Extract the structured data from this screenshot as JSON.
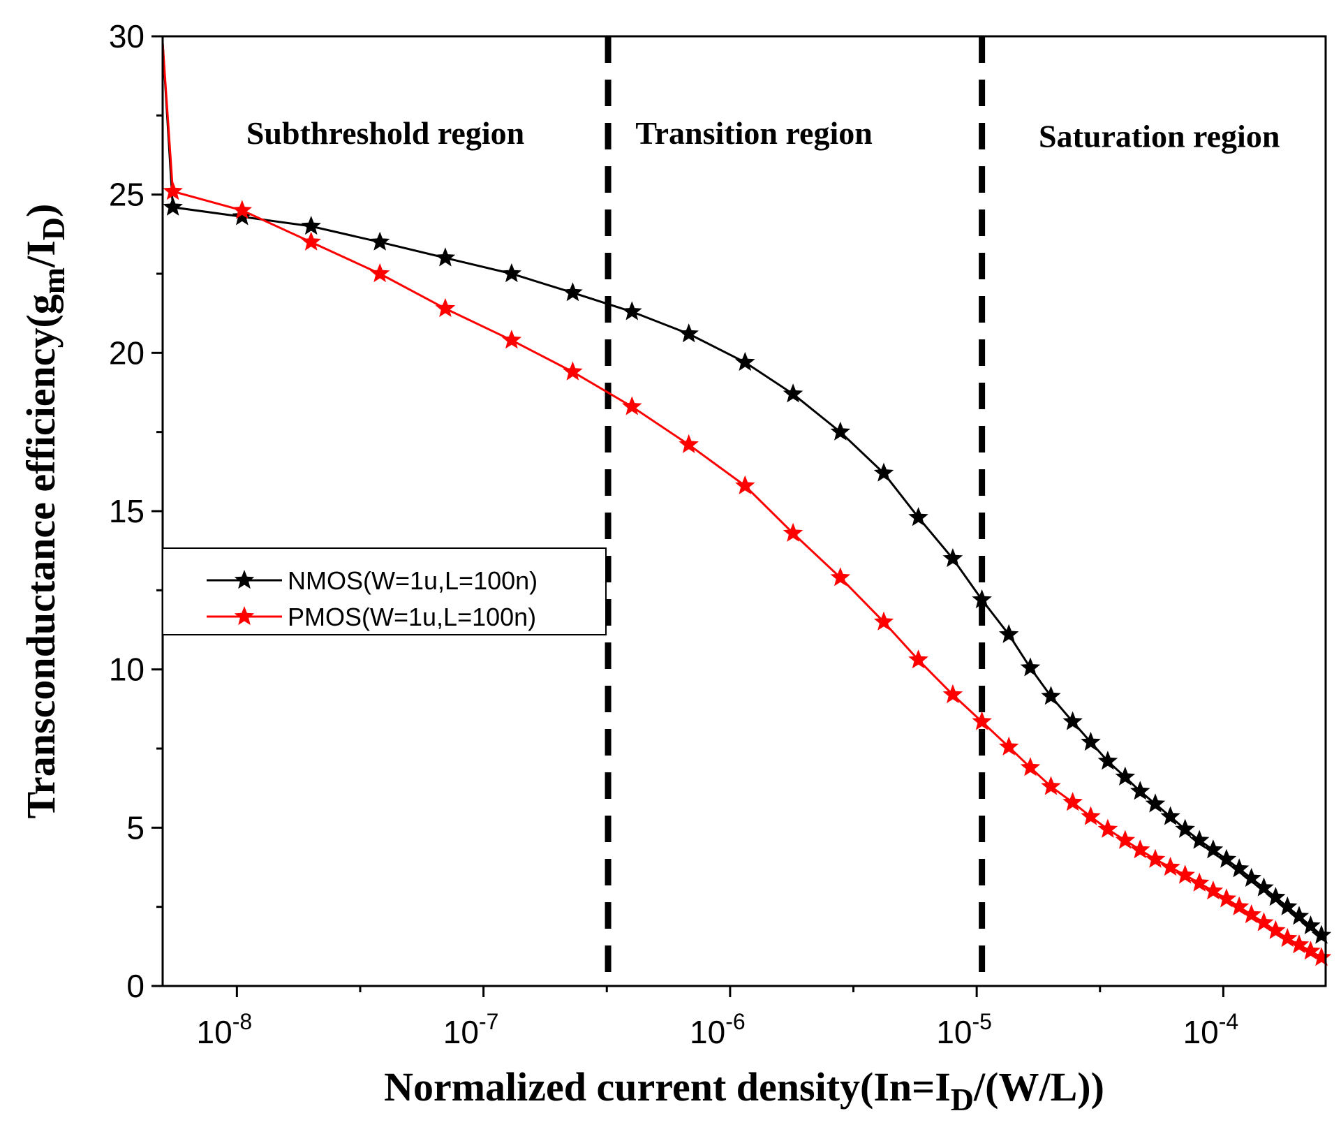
{
  "chart_data": {
    "type": "line",
    "title": "",
    "xlabel": "Normalized current density(In=I_D/(W/L))",
    "xlabel_parts": {
      "main": "Normalized current density(In=I",
      "sub": "D",
      "tail": "/(W/L))"
    },
    "ylabel": "Transconductance efficiency(g_m/I_D)",
    "ylabel_parts": {
      "main": "Transconductance efficiency(g",
      "sub1": "m",
      "mid": "/I",
      "sub2": "D",
      "tail": ")"
    },
    "x_scale": "log",
    "xlim": [
      5e-09,
      0.00026
    ],
    "ylim": [
      0,
      30
    ],
    "x_ticks": [
      {
        "value": 1e-08,
        "base": "10",
        "exp": "-8"
      },
      {
        "value": 1e-07,
        "base": "10",
        "exp": "-7"
      },
      {
        "value": 1e-06,
        "base": "10",
        "exp": "-6"
      },
      {
        "value": 1e-05,
        "base": "10",
        "exp": "-5"
      },
      {
        "value": 0.0001,
        "base": "10",
        "exp": "-4"
      }
    ],
    "y_ticks": [
      0,
      5,
      10,
      15,
      20,
      25,
      30
    ],
    "y_tick_labels": [
      "0",
      "5",
      "10",
      "15",
      "20",
      "25",
      "30"
    ],
    "region_boundaries": [
      3.2e-07,
      1.05e-05
    ],
    "regions": [
      {
        "label": "Subthreshold region",
        "x_center": 4e-08,
        "y": 26.6
      },
      {
        "label": "Transition region",
        "x_center": 1.25e-06,
        "y": 26.6
      },
      {
        "label": "Saturation region",
        "x_center": 5.5e-05,
        "y": 26.5
      }
    ],
    "legend_position": "middle-left",
    "series": [
      {
        "name": "NMOS(W=1u,L=100n)",
        "color": "#000000",
        "marker": "star",
        "points": [
          [
            5e-09,
            29.8
          ],
          [
            5.5e-09,
            24.6
          ],
          [
            1.05e-08,
            24.3
          ],
          [
            2e-08,
            24.0
          ],
          [
            3.8e-08,
            23.5
          ],
          [
            7e-08,
            23.0
          ],
          [
            1.3e-07,
            22.5
          ],
          [
            2.3e-07,
            21.9
          ],
          [
            4e-07,
            21.3
          ],
          [
            6.8e-07,
            20.6
          ],
          [
            1.15e-06,
            19.7
          ],
          [
            1.8e-06,
            18.7
          ],
          [
            2.8e-06,
            17.5
          ],
          [
            4.2e-06,
            16.2
          ],
          [
            5.8e-06,
            14.8
          ],
          [
            8e-06,
            13.5
          ],
          [
            1.05e-05,
            12.2
          ],
          [
            1.35e-05,
            11.1
          ],
          [
            1.65e-05,
            10.05
          ],
          [
            2e-05,
            9.15
          ],
          [
            2.45e-05,
            8.35
          ],
          [
            2.9e-05,
            7.7
          ],
          [
            3.4e-05,
            7.1
          ],
          [
            4e-05,
            6.6
          ],
          [
            4.6e-05,
            6.15
          ],
          [
            5.3e-05,
            5.75
          ],
          [
            6.1e-05,
            5.35
          ],
          [
            7e-05,
            4.95
          ],
          [
            8e-05,
            4.6
          ],
          [
            9.1e-05,
            4.3
          ],
          [
            0.000103,
            4.0
          ],
          [
            0.000116,
            3.7
          ],
          [
            0.00013,
            3.4
          ],
          [
            0.000146,
            3.1
          ],
          [
            0.000163,
            2.8
          ],
          [
            0.000182,
            2.5
          ],
          [
            0.000203,
            2.2
          ],
          [
            0.000226,
            1.9
          ],
          [
            0.00025,
            1.6
          ]
        ]
      },
      {
        "name": "PMOS(W=1u,L=100n)",
        "color": "#ff0000",
        "marker": "star",
        "points": [
          [
            5e-09,
            29.8
          ],
          [
            5.5e-09,
            25.1
          ],
          [
            1.05e-08,
            24.5
          ],
          [
            2e-08,
            23.5
          ],
          [
            3.8e-08,
            22.5
          ],
          [
            7e-08,
            21.4
          ],
          [
            1.3e-07,
            20.4
          ],
          [
            2.3e-07,
            19.4
          ],
          [
            4e-07,
            18.3
          ],
          [
            6.8e-07,
            17.1
          ],
          [
            1.15e-06,
            15.8
          ],
          [
            1.8e-06,
            14.3
          ],
          [
            2.8e-06,
            12.9
          ],
          [
            4.2e-06,
            11.5
          ],
          [
            5.8e-06,
            10.3
          ],
          [
            8e-06,
            9.2
          ],
          [
            1.05e-05,
            8.35
          ],
          [
            1.35e-05,
            7.55
          ],
          [
            1.65e-05,
            6.9
          ],
          [
            2e-05,
            6.3
          ],
          [
            2.45e-05,
            5.8
          ],
          [
            2.9e-05,
            5.35
          ],
          [
            3.4e-05,
            4.95
          ],
          [
            4e-05,
            4.6
          ],
          [
            4.6e-05,
            4.3
          ],
          [
            5.3e-05,
            4.0
          ],
          [
            6.1e-05,
            3.75
          ],
          [
            7e-05,
            3.5
          ],
          [
            8e-05,
            3.25
          ],
          [
            9.1e-05,
            3.0
          ],
          [
            0.000103,
            2.75
          ],
          [
            0.000116,
            2.5
          ],
          [
            0.00013,
            2.25
          ],
          [
            0.000146,
            2.0
          ],
          [
            0.000163,
            1.75
          ],
          [
            0.000182,
            1.5
          ],
          [
            0.000203,
            1.3
          ],
          [
            0.000226,
            1.1
          ],
          [
            0.00025,
            0.9
          ]
        ]
      }
    ]
  }
}
